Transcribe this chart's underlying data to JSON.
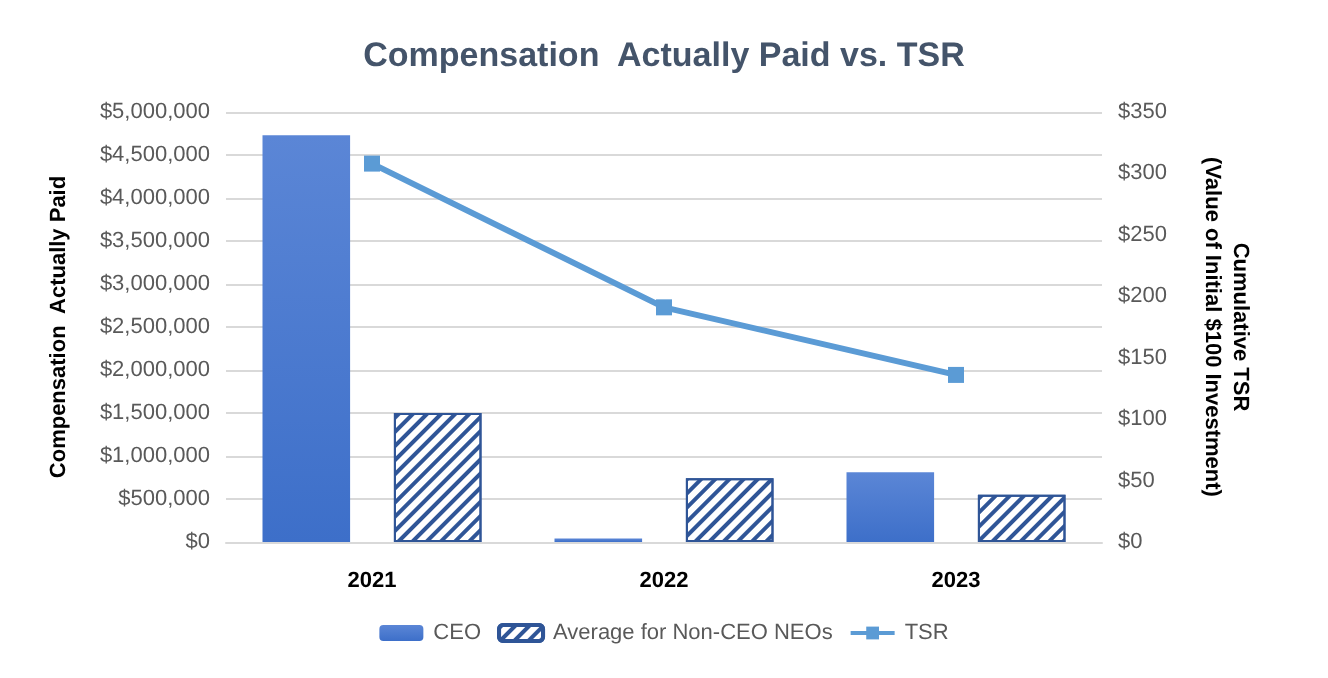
{
  "chart_data": {
    "type": "bar",
    "title": "Compensation  Actually Paid vs. TSR",
    "categories": [
      "2021",
      "2022",
      "2023"
    ],
    "series": [
      {
        "name": "CEO",
        "color": "#3d6fc9",
        "values": [
          4730000,
          40000,
          810000
        ]
      },
      {
        "name": "Average for Non-CEO NEOs",
        "color": "#2f5597",
        "values": [
          1500000,
          740000,
          550000
        ]
      },
      {
        "name": "TSR",
        "type": "line",
        "axis": "y2",
        "color": "#5b9bd5",
        "marker": "square",
        "values": [
          308,
          191,
          136
        ]
      }
    ],
    "ylabel": "Compensation  Actually Paid",
    "y2label": "Cumulative TSR\n(Value of Initial $100 Investment)",
    "ylim": [
      0,
      5000000
    ],
    "yticks": [
      {
        "value": 0,
        "label": "$0"
      },
      {
        "value": 500000,
        "label": "$500,000"
      },
      {
        "value": 1000000,
        "label": "$1,000,000"
      },
      {
        "value": 1500000,
        "label": "$1,500,000"
      },
      {
        "value": 2000000,
        "label": "$2,000,000"
      },
      {
        "value": 2500000,
        "label": "$2,500,000"
      },
      {
        "value": 3000000,
        "label": "$3,000,000"
      },
      {
        "value": 3500000,
        "label": "$3,500,000"
      },
      {
        "value": 4000000,
        "label": "$4,000,000"
      },
      {
        "value": 4500000,
        "label": "$4,500,000"
      },
      {
        "value": 5000000,
        "label": "$5,000,000"
      }
    ],
    "y2lim": [
      0,
      350
    ],
    "y2ticks": [
      {
        "value": 0,
        "label": "$0"
      },
      {
        "value": 50,
        "label": "$50"
      },
      {
        "value": 100,
        "label": "$100"
      },
      {
        "value": 150,
        "label": "$150"
      },
      {
        "value": 200,
        "label": "$200"
      },
      {
        "value": 250,
        "label": "$250"
      },
      {
        "value": 300,
        "label": "$300"
      },
      {
        "value": 350,
        "label": "$350"
      }
    ],
    "grid": "y",
    "legend": "bottom"
  }
}
